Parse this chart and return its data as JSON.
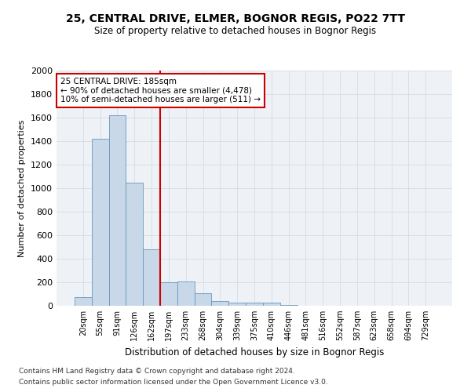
{
  "title_line1": "25, CENTRAL DRIVE, ELMER, BOGNOR REGIS, PO22 7TT",
  "title_line2": "Size of property relative to detached houses in Bognor Regis",
  "xlabel": "Distribution of detached houses by size in Bognor Regis",
  "ylabel": "Number of detached properties",
  "categories": [
    "20sqm",
    "55sqm",
    "91sqm",
    "126sqm",
    "162sqm",
    "197sqm",
    "233sqm",
    "268sqm",
    "304sqm",
    "339sqm",
    "375sqm",
    "410sqm",
    "446sqm",
    "481sqm",
    "516sqm",
    "552sqm",
    "587sqm",
    "623sqm",
    "658sqm",
    "694sqm",
    "729sqm"
  ],
  "values": [
    75,
    1420,
    1620,
    1050,
    480,
    200,
    205,
    105,
    40,
    30,
    25,
    25,
    10,
    0,
    0,
    0,
    0,
    0,
    0,
    0,
    0
  ],
  "bar_color": "#c8d8e8",
  "bar_edge_color": "#6699bb",
  "grid_color": "#d0d8e0",
  "annotation_line1": "25 CENTRAL DRIVE: 185sqm",
  "annotation_line2": "← 90% of detached houses are smaller (4,478)",
  "annotation_line3": "10% of semi-detached houses are larger (511) →",
  "annotation_box_color": "#cc0000",
  "vline_x_index": 4.5,
  "vline_color": "#cc0000",
  "ylim": [
    0,
    2000
  ],
  "yticks": [
    0,
    200,
    400,
    600,
    800,
    1000,
    1200,
    1400,
    1600,
    1800,
    2000
  ],
  "footer_line1": "Contains HM Land Registry data © Crown copyright and database right 2024.",
  "footer_line2": "Contains public sector information licensed under the Open Government Licence v3.0.",
  "background_color": "#eef2f6"
}
